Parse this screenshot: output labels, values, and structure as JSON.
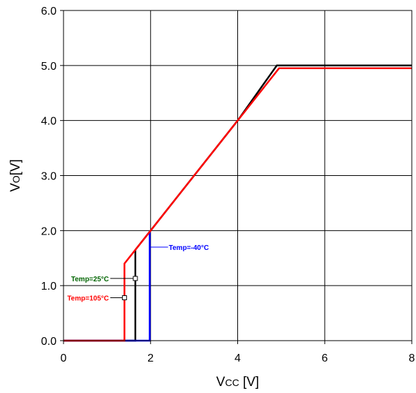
{
  "chart_data": {
    "type": "line",
    "xlabel": {
      "main": "V",
      "sub": "CC",
      "rest": " [V]"
    },
    "ylabel": {
      "main": "V",
      "sub": "O",
      "rest": "[V]"
    },
    "xlim": [
      0,
      8
    ],
    "ylim": [
      0,
      6
    ],
    "xticks": [
      0,
      2,
      4,
      6,
      8
    ],
    "yticks": [
      0,
      1,
      2,
      3,
      4,
      5,
      6
    ],
    "xtick_labels": [
      "0",
      "2",
      "4",
      "6",
      "8"
    ],
    "ytick_labels": [
      "0.0",
      "1.0",
      "2.0",
      "3.0",
      "4.0",
      "5.0",
      "6.0"
    ],
    "grid": true,
    "series": [
      {
        "color": "#000000",
        "x": [
          0,
          1.65,
          1.65,
          2.0,
          4.0,
          4.9,
          8.0
        ],
        "y": [
          0,
          0,
          1.65,
          2.0,
          4.0,
          5.0,
          5.0
        ]
      },
      {
        "color": "#0000ff",
        "x": [
          0,
          1.98,
          1.98,
          2.0
        ],
        "y": [
          0,
          0,
          1.98,
          2.0
        ]
      },
      {
        "color": "#ff0000",
        "x": [
          0,
          1.4,
          1.4,
          2.0,
          4.0,
          4.95,
          8.0
        ],
        "y": [
          0,
          0,
          1.4,
          2.0,
          4.0,
          4.95,
          4.95
        ]
      }
    ],
    "annotations": [
      {
        "text": "Temp=-40°C",
        "color": "#0000ff",
        "point": [
          2.0,
          1.7
        ]
      },
      {
        "text": "Temp=25°C",
        "color": "#006400",
        "point": [
          1.65,
          1.13
        ]
      },
      {
        "text": "Temp=105°C",
        "color": "#ff0000",
        "point": [
          1.4,
          0.78
        ]
      }
    ]
  }
}
